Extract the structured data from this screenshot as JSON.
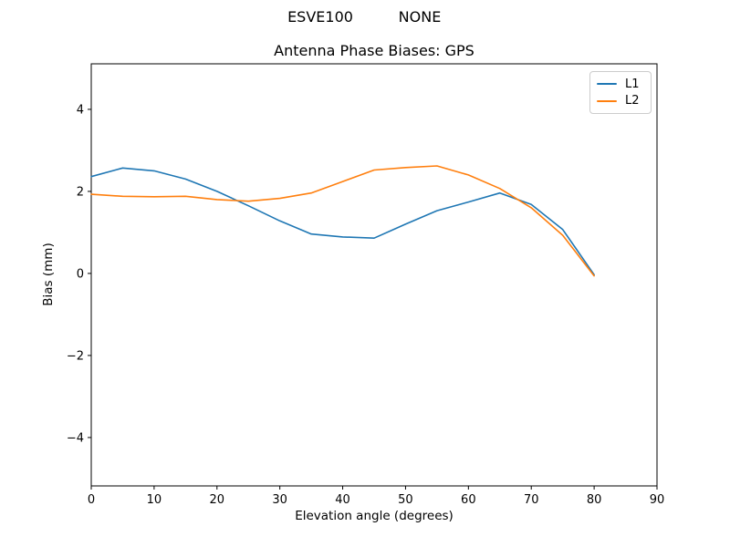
{
  "chart_data": {
    "type": "line",
    "suptitle_left": "ESVE100",
    "suptitle_right": "NONE",
    "title": "Antenna Phase Biases: GPS",
    "xlabel": "Elevation angle (degrees)",
    "ylabel": "Bias (mm)",
    "xlim": [
      0,
      90
    ],
    "ylim": [
      -5.18,
      5.11
    ],
    "xticks": [
      0,
      10,
      20,
      30,
      40,
      50,
      60,
      70,
      80,
      90
    ],
    "yticks": [
      -4,
      -2,
      0,
      2,
      4
    ],
    "grid": false,
    "legend_position": "upper right",
    "x": [
      0,
      5,
      10,
      15,
      20,
      25,
      30,
      35,
      40,
      45,
      50,
      55,
      60,
      65,
      70,
      75,
      80
    ],
    "series": [
      {
        "name": "L1",
        "color": "#1f77b4",
        "values": [
          2.36,
          2.57,
          2.5,
          2.3,
          2.0,
          1.65,
          1.28,
          0.96,
          0.89,
          0.86,
          1.2,
          1.53,
          1.74,
          1.96,
          1.68,
          1.07,
          -0.03
        ]
      },
      {
        "name": "L2",
        "color": "#ff7f0e",
        "values": [
          1.93,
          1.88,
          1.87,
          1.88,
          1.8,
          1.76,
          1.83,
          1.96,
          2.24,
          2.52,
          2.58,
          2.62,
          2.4,
          2.07,
          1.6,
          0.93,
          -0.06
        ]
      }
    ],
    "axis_color": "#000000",
    "legend_border_color": "#cccccc"
  }
}
